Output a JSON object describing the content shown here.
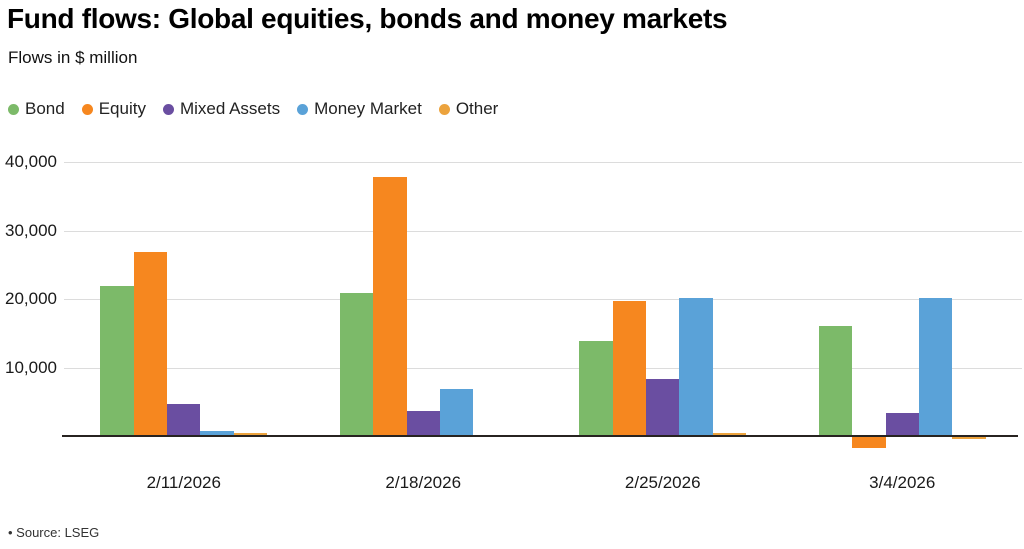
{
  "chart": {
    "title": "Fund flows: Global equities, bonds and money markets",
    "subtitle": "Flows in $ million",
    "source": "• Source: LSEG"
  },
  "chart_data": {
    "type": "bar",
    "title": "Fund flows: Global equities, bonds and money markets",
    "subtitle": "Flows in $ million",
    "ylabel": "Flows in $ million",
    "xlabel": "",
    "categories": [
      "2/11/2026",
      "2/18/2026",
      "2/25/2026",
      "3/4/2026"
    ],
    "series": [
      {
        "name": "Bond",
        "color": "#7cba69",
        "values": [
          21900,
          20900,
          13800,
          16100
        ]
      },
      {
        "name": "Equity",
        "color": "#f6871f",
        "values": [
          26900,
          37800,
          19700,
          -1600
        ]
      },
      {
        "name": "Mixed Assets",
        "color": "#6a4ea1",
        "values": [
          4700,
          3700,
          8300,
          3400
        ]
      },
      {
        "name": "Money Market",
        "color": "#5aa2d8",
        "values": [
          700,
          6900,
          20100,
          20200
        ]
      },
      {
        "name": "Other",
        "color": "#eca33d",
        "values": [
          400,
          150,
          400,
          -150
        ]
      }
    ],
    "ylim": [
      -2000,
      40000
    ],
    "yticks": [
      10000,
      20000,
      30000,
      40000
    ],
    "grid": true,
    "legend_position": "top",
    "source": "Source: LSEG"
  }
}
